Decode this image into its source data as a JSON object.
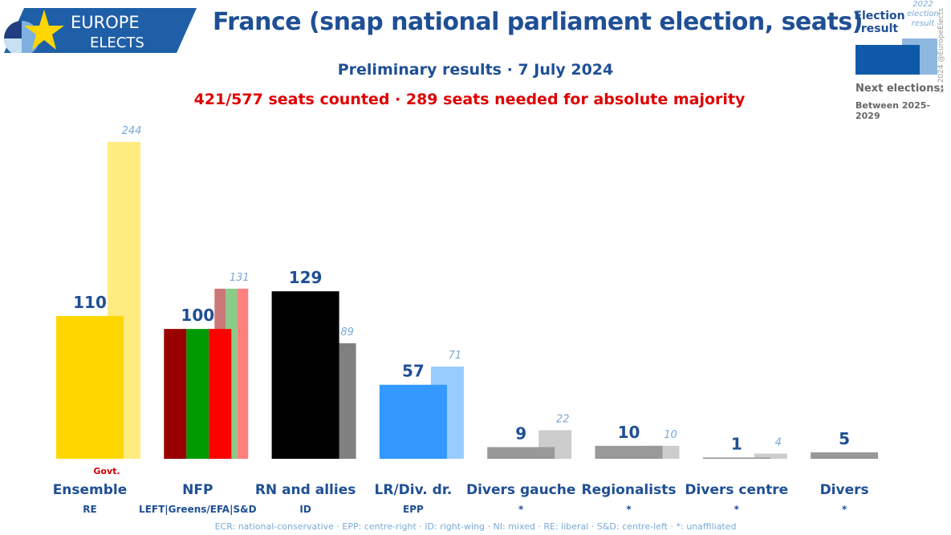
{
  "logo": {
    "line1": "EUROPE",
    "line2": "ELECTS"
  },
  "title": "France (snap national parliament election, seats)",
  "subtitle": "Preliminary results · 7 July 2024",
  "subtitle2": "421/577 seats counted · 289 seats needed for absolute majority",
  "legend": {
    "current": "Election result",
    "previous": "2022 election result",
    "next_label": "Next elections:",
    "next_value": "Between 2025-2029",
    "copyright": "© 2024 @EuropeElects"
  },
  "footer": "ECR: national-conservative · EPP: centre-right · ID: right-wing · NI: mixed · RE: liberal · S&D: centre-left · *: unaffiliated",
  "chart_data": {
    "type": "bar",
    "title": "France (snap national parliament election, seats)",
    "categories": [
      "Ensemble",
      "NFP",
      "RN and allies",
      "LR/Div. dr.",
      "Divers gauche",
      "Regionalists",
      "Divers centre",
      "Divers"
    ],
    "affiliations": [
      "RE",
      "LEFT|Greens/EFA|S&D",
      "ID",
      "EPP",
      "*",
      "*",
      "*",
      "*"
    ],
    "series": [
      {
        "name": "Election result",
        "values": [
          110,
          100,
          129,
          57,
          9,
          10,
          1,
          5
        ]
      },
      {
        "name": "2022 election result",
        "values": [
          244,
          131,
          89,
          71,
          22,
          10,
          4,
          null
        ]
      }
    ],
    "annotations": [
      {
        "category": "Ensemble",
        "text": "Govt."
      }
    ],
    "colors": {
      "current": [
        "#FFD700",
        [
          "#990000",
          "#009900",
          "#FF0000"
        ],
        "#000000",
        "#3399FF",
        "#999999",
        "#999999",
        "#999999",
        "#999999"
      ],
      "previous": [
        "#FFEC80",
        [
          "#CC7777",
          "#88CC88",
          "#FF8080"
        ],
        "#808080",
        "#99CCFF",
        "#CCCCCC",
        "#CCCCCC",
        "#CCCCCC",
        null
      ]
    },
    "ylim": [
      0,
      244
    ]
  }
}
